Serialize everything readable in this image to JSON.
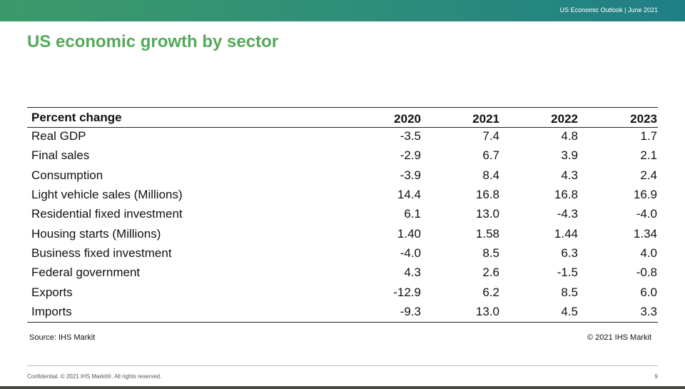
{
  "header": {
    "bar_text": "US Economic Outlook | June 2021",
    "title": "US economic growth by sector"
  },
  "table": {
    "columns": [
      "Percent change",
      "2020",
      "2021",
      "2022",
      "2023"
    ],
    "rows": [
      [
        "Real GDP",
        "-3.5",
        "7.4",
        "4.8",
        "1.7"
      ],
      [
        "Final sales",
        "-2.9",
        "6.7",
        "3.9",
        "2.1"
      ],
      [
        "Consumption",
        "-3.9",
        "8.4",
        "4.3",
        "2.4"
      ],
      [
        "Light vehicle sales (Millions)",
        "14.4",
        "16.8",
        "16.8",
        "16.9"
      ],
      [
        "Residential fixed investment",
        "6.1",
        "13.0",
        "-4.3",
        "-4.0"
      ],
      [
        "Housing starts (Millions)",
        "1.40",
        "1.58",
        "1.44",
        "1.34"
      ],
      [
        "Business fixed investment",
        "-4.0",
        "8.5",
        "6.3",
        "4.0"
      ],
      [
        "Federal government",
        "4.3",
        "2.6",
        "-1.5",
        "-0.8"
      ],
      [
        "Exports",
        "-12.9",
        "6.2",
        "8.5",
        "6.0"
      ],
      [
        "Imports",
        "-9.3",
        "13.0",
        "4.5",
        "3.3"
      ]
    ]
  },
  "source": "Source: IHS Markit",
  "copyright": "© 2021 IHS Markit",
  "footer": {
    "confidential": "Confidential. © 2021 IHS Markit®. All rights reserved.",
    "page": "9"
  }
}
